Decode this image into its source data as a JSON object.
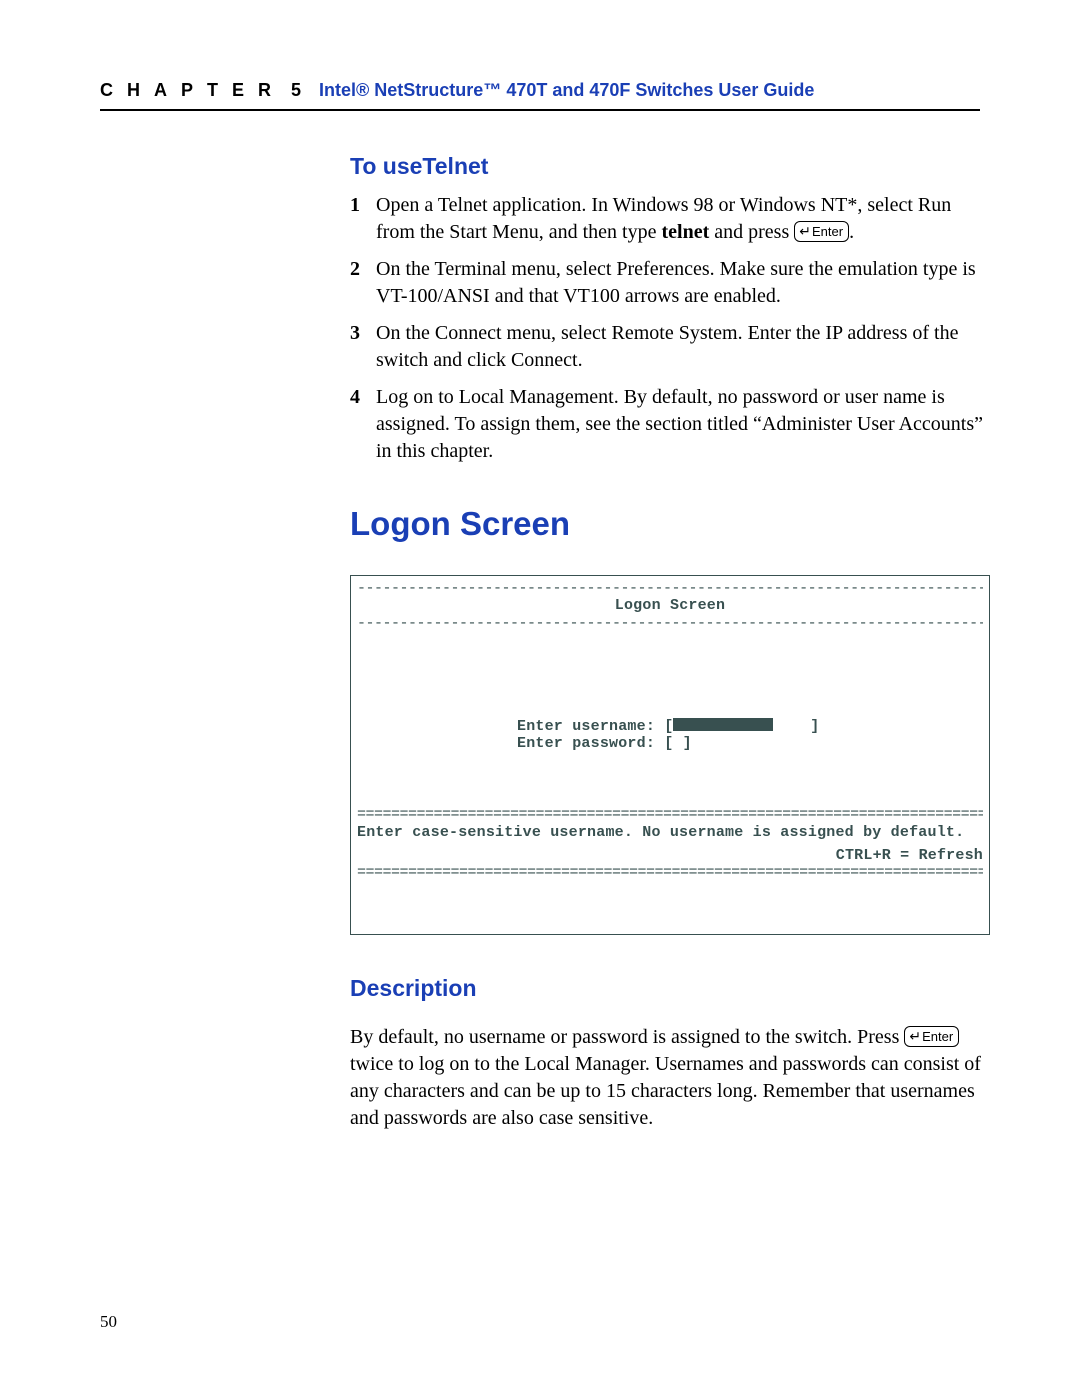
{
  "header": {
    "chapter_label": "CHAPTER",
    "chapter_num": "5",
    "guide_title": "Intel® NetStructure™ 470T and 470F Switches User Guide"
  },
  "section1": {
    "heading": "To useTelnet",
    "steps": [
      {
        "num": "1",
        "before": "Open a Telnet application. In Windows 98 or Windows NT*, select Run from the Start Menu, and then type ",
        "bold": "telnet",
        "after1": " and press ",
        "enter": true,
        "after2": "."
      },
      {
        "num": "2",
        "text": "On the Terminal menu, select Preferences. Make sure the emulation type is VT-100/ANSI and that VT100 arrows are enabled."
      },
      {
        "num": "3",
        "text": "On the Connect menu, select Remote System. Enter the IP address of the switch and click Connect."
      },
      {
        "num": "4",
        "text": "Log on to Local Management. By default, no password or user name is assigned. To assign them, see the section titled “Administer User Accounts” in this chapter."
      }
    ]
  },
  "section2": {
    "heading": "Logon Screen",
    "terminal": {
      "title": "Logon Screen",
      "line_user": "Enter username: [",
      "line_user_end": "]",
      "line_pass": "Enter password: [               ]",
      "msg": "Enter case-sensitive username. No username is assigned by default.",
      "refresh": "CTRL+R = Refresh"
    }
  },
  "section3": {
    "heading": "Description",
    "before": "By default, no username or password is assigned to the switch. Press ",
    "after": " twice to log on to the Local Manager. Usernames and passwords can consist of any characters and can be up to 15 characters long. Remember that usernames and passwords are also case sensitive."
  },
  "page_number": "50",
  "enter_key_label": "Enter",
  "colors": {
    "accent": "#1a3fb5",
    "terminal_text": "#385050"
  }
}
